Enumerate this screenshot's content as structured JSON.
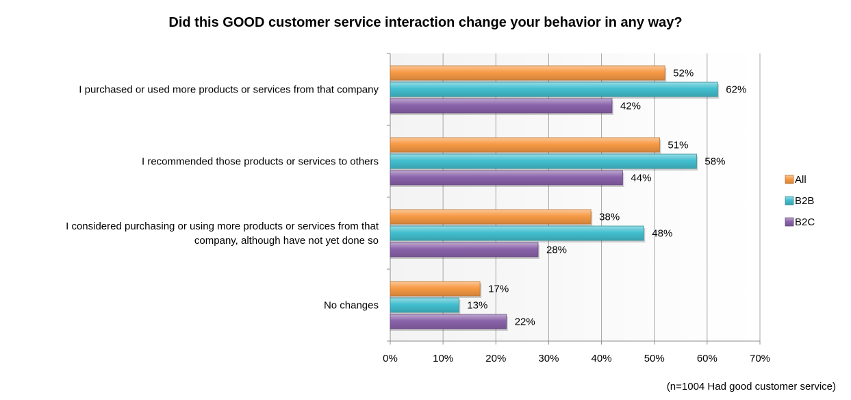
{
  "title": "Did this GOOD customer service interaction change your behavior in any way?",
  "footnote": "(n=1004 Had good customer service)",
  "chart_data": {
    "type": "bar",
    "orientation": "horizontal",
    "title": "Did this GOOD customer service interaction change your behavior in any way?",
    "xlabel": "",
    "ylabel": "",
    "xlim": [
      0,
      70
    ],
    "x_ticks": [
      "0%",
      "10%",
      "20%",
      "30%",
      "40%",
      "50%",
      "60%",
      "70%"
    ],
    "value_suffix": "%",
    "grid": true,
    "legend_position": "right",
    "categories": [
      [
        "I purchased or used more products or services from that company"
      ],
      [
        "I recommended those products or services to others"
      ],
      [
        "I considered purchasing or using more products or services from that",
        "company, although have not yet done so"
      ],
      [
        "No changes"
      ]
    ],
    "series": [
      {
        "name": "All",
        "color": "#f79a45",
        "values": [
          52,
          51,
          38,
          17
        ]
      },
      {
        "name": "B2B",
        "color": "#43bfcf",
        "values": [
          62,
          58,
          48,
          13
        ]
      },
      {
        "name": "B2C",
        "color": "#8a63aa",
        "values": [
          42,
          44,
          28,
          22
        ]
      }
    ]
  }
}
